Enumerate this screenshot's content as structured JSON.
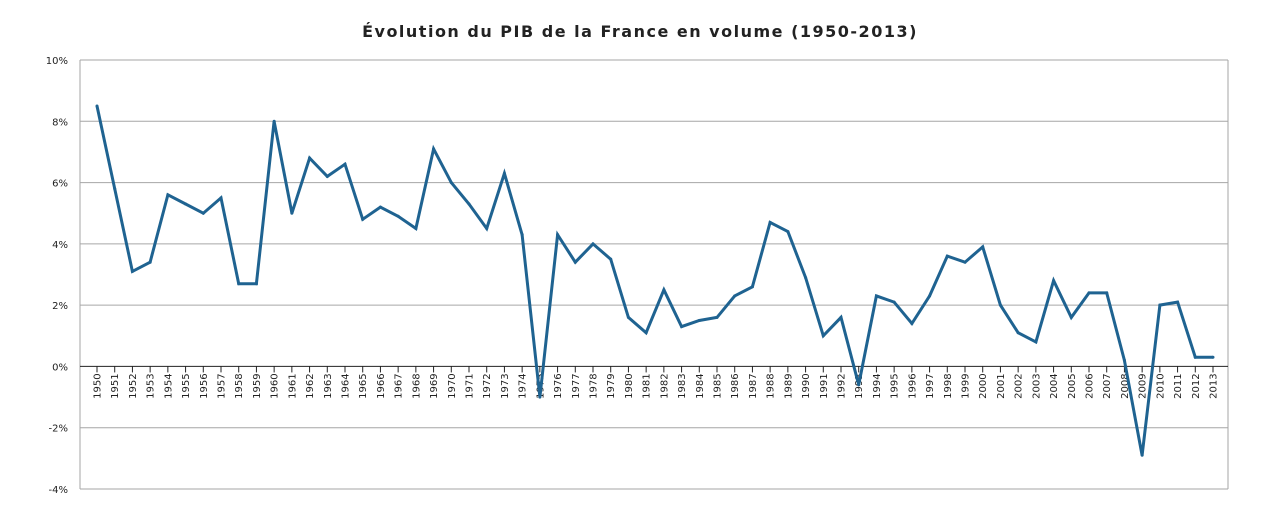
{
  "chart_data": {
    "type": "line",
    "title": "Évolution du PIB de la France en volume (1950-2013)",
    "xlabel": "",
    "ylabel": "",
    "ylim": [
      -4,
      10
    ],
    "yticks": [
      {
        "value": 10,
        "label": "10%"
      },
      {
        "value": 8,
        "label": "8%"
      },
      {
        "value": 6,
        "label": "6%"
      },
      {
        "value": 4,
        "label": "4%"
      },
      {
        "value": 2,
        "label": "2%"
      },
      {
        "value": 0,
        "label": "0%"
      },
      {
        "value": -2,
        "label": "-2%"
      },
      {
        "value": -4,
        "label": "-4%"
      }
    ],
    "grid": true,
    "legend": "none",
    "line_color": "#1f6391",
    "x": [
      "1950",
      "1951",
      "1952",
      "1953",
      "1954",
      "1955",
      "1956",
      "1957",
      "1958",
      "1959",
      "1960",
      "1961",
      "1962",
      "1963",
      "1964",
      "1965",
      "1966",
      "1967",
      "1968",
      "1969",
      "1970",
      "1971",
      "1972",
      "1973",
      "1974",
      "1975",
      "1976",
      "1977",
      "1978",
      "1979",
      "1980",
      "1981",
      "1982",
      "1983",
      "1984",
      "1985",
      "1986",
      "1987",
      "1988",
      "1989",
      "1990",
      "1991",
      "1992",
      "1993",
      "1994",
      "1995",
      "1996",
      "1997",
      "1998",
      "1999",
      "2000",
      "2001",
      "2002",
      "2003",
      "2004",
      "2005",
      "2006",
      "2007",
      "2008",
      "2009",
      "2010",
      "2011",
      "2012",
      "2013"
    ],
    "series": [
      {
        "values": [
          8.5,
          5.8,
          3.1,
          3.4,
          5.6,
          5.3,
          5.0,
          5.5,
          2.7,
          2.7,
          8.0,
          5.0,
          6.8,
          6.2,
          6.6,
          4.8,
          5.2,
          4.9,
          4.5,
          7.1,
          6.0,
          5.3,
          4.5,
          6.3,
          4.3,
          -1.0,
          4.3,
          3.4,
          4.0,
          3.5,
          1.6,
          1.1,
          2.5,
          1.3,
          1.5,
          1.6,
          2.3,
          2.6,
          4.7,
          4.4,
          2.9,
          1.0,
          1.6,
          -0.6,
          2.3,
          2.1,
          1.4,
          2.3,
          3.6,
          3.4,
          3.9,
          2.0,
          1.1,
          0.8,
          2.8,
          1.6,
          2.4,
          2.4,
          0.2,
          -2.9,
          2.0,
          2.1,
          0.3,
          0.3
        ]
      }
    ]
  }
}
